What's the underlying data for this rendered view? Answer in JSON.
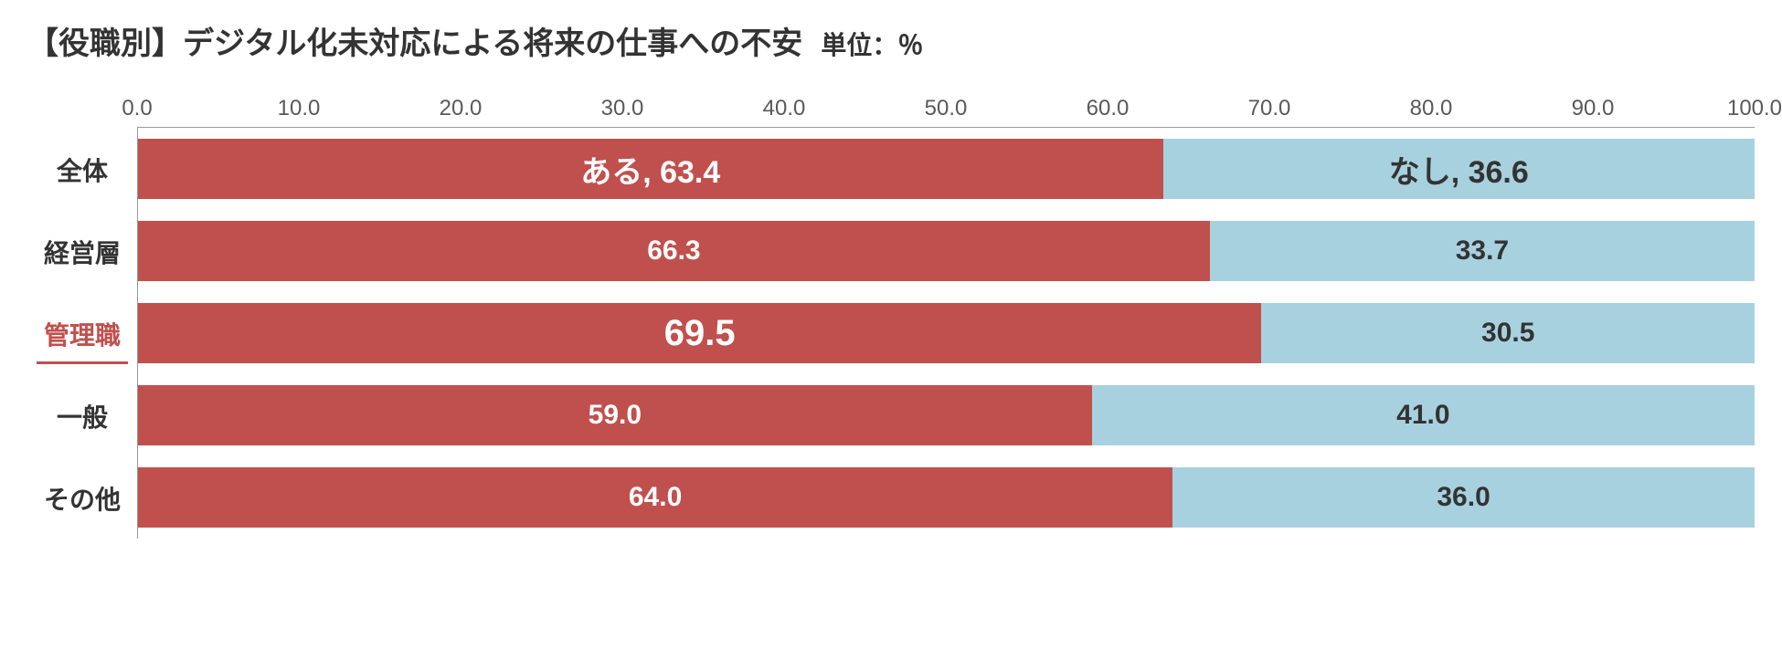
{
  "chart": {
    "type": "stacked-bar-horizontal",
    "title": "【役職別】デジタル化未対応による将来の仕事への不安",
    "unit": "単位：％",
    "title_fontsize": 34,
    "unit_fontsize": 28,
    "title_color": "#333333",
    "xlim": [
      0,
      100
    ],
    "xtick_step": 10.0,
    "xtick_labels": [
      "0.0",
      "10.0",
      "20.0",
      "30.0",
      "40.0",
      "50.0",
      "60.0",
      "70.0",
      "80.0",
      "90.0",
      "100.0"
    ],
    "xtick_fontsize": 24,
    "xtick_color": "#595959",
    "categories": [
      "全体",
      "経営層",
      "管理職",
      "一般",
      "その他"
    ],
    "category_fontsize": 28,
    "category_color": "#333333",
    "highlighted_category_index": 2,
    "highlight_color": "#c0504d",
    "series": [
      {
        "name": "ある",
        "color": "#c0504d",
        "text_color": "#ffffff"
      },
      {
        "name": "なし",
        "color": "#a8d1df",
        "text_color": "#333333"
      }
    ],
    "rows": [
      {
        "label": "全体",
        "yes": 63.4,
        "no": 36.6,
        "yes_text": "ある, 63.4",
        "no_text": "なし, 36.6",
        "label_fontsize": 34
      },
      {
        "label": "経営層",
        "yes": 66.3,
        "no": 33.7,
        "yes_text": "66.3",
        "no_text": "33.7",
        "label_fontsize": 30
      },
      {
        "label": "管理職",
        "yes": 69.5,
        "no": 30.5,
        "yes_text": "69.5",
        "no_text": "30.5",
        "label_fontsize": 40
      },
      {
        "label": "一般",
        "yes": 59.0,
        "no": 41.0,
        "yes_text": "59.0",
        "no_text": "41.0",
        "label_fontsize": 30
      },
      {
        "label": "その他",
        "yes": 64.0,
        "no": 36.0,
        "yes_text": "64.0",
        "no_text": "36.0",
        "label_fontsize": 30
      }
    ],
    "bar_row_height": 90,
    "background_color": "#ffffff",
    "axis_color": "#999999"
  }
}
